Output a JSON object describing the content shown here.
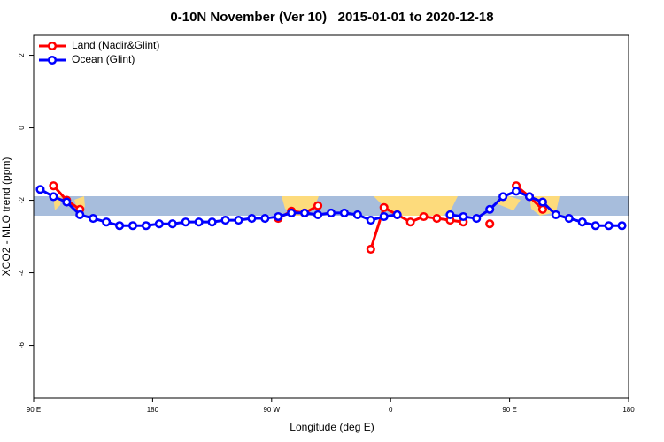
{
  "chart_data": {
    "type": "line",
    "title": "0-10N November (Ver 10)   2015-01-01 to 2020-12-18",
    "x_label": "Longitude (deg E)",
    "y_label": "XCO2 - MLO trend (ppm)",
    "xlim": [
      90,
      540
    ],
    "ylim": [
      -7.45,
      2.55
    ],
    "xticks": [
      {
        "value": 90,
        "label": "90 E"
      },
      180,
      {
        "value": 270,
        "label": "90 W"
      },
      {
        "value": 360,
        "label": "0"
      },
      {
        "value": 450,
        "label": "90 E"
      },
      {
        "value": 540,
        "label": "180"
      }
    ],
    "yticks": [
      2,
      0,
      -2,
      -4,
      -6
    ],
    "legend": "top-left",
    "x": [
      95,
      105,
      115,
      125,
      135,
      145,
      155,
      165,
      175,
      185,
      195,
      205,
      215,
      225,
      235,
      245,
      255,
      265,
      275,
      285,
      295,
      305,
      315,
      325,
      335,
      345,
      355,
      365,
      375,
      385,
      395,
      405,
      415,
      425,
      435,
      445,
      455,
      465,
      475,
      485,
      495,
      505,
      515,
      525,
      535
    ],
    "series": [
      {
        "name": "Land (Nadir&Glint)",
        "color": "#ff0000",
        "values": [
          null,
          -1.6,
          -2.0,
          -2.25,
          null,
          null,
          null,
          null,
          null,
          null,
          null,
          null,
          null,
          null,
          null,
          null,
          null,
          null,
          -2.5,
          -2.3,
          -2.35,
          -2.15,
          null,
          null,
          null,
          -3.35,
          -2.2,
          -2.4,
          -2.6,
          -2.45,
          -2.5,
          -2.55,
          -2.6,
          null,
          -2.65,
          null,
          -1.6,
          -1.9,
          -2.25,
          null,
          null,
          null,
          null,
          null,
          null
        ]
      },
      {
        "name": "Ocean (Glint)",
        "color": "#0000ff",
        "values": [
          -1.7,
          -1.9,
          -2.05,
          -2.4,
          -2.5,
          -2.6,
          -2.7,
          -2.7,
          -2.7,
          -2.65,
          -2.65,
          -2.6,
          -2.6,
          -2.6,
          -2.55,
          -2.55,
          -2.5,
          -2.5,
          -2.45,
          -2.35,
          -2.35,
          -2.4,
          -2.35,
          -2.35,
          -2.4,
          -2.55,
          -2.45,
          -2.4,
          null,
          null,
          null,
          -2.4,
          -2.45,
          -2.5,
          -2.25,
          -1.9,
          -1.75,
          -1.9,
          -2.05,
          -2.4,
          -2.5,
          -2.6,
          -2.7,
          -2.7,
          -2.7
        ]
      }
    ]
  }
}
